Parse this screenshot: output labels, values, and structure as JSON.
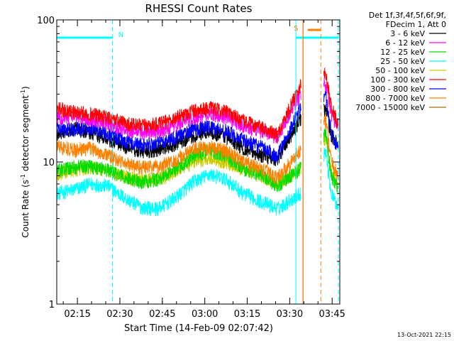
{
  "chart_data": {
    "type": "line",
    "title": "RHESSI Count Rates",
    "xlabel": "Start Time (14-Feb-09 02:07:42)",
    "ylabel": "Count Rate (s⁻¹ detector segment⁻¹)",
    "ylabel_main": "Count Rate (s",
    "ylabel_sup1": "-1",
    "ylabel_mid": " detector segment",
    "ylabel_sup2": "-1",
    "ylabel_end": ")",
    "y_scale": "log",
    "ylim": [
      1,
      100
    ],
    "xlim_minutes": [
      0,
      100
    ],
    "x_ticks": [
      {
        "label": "02:15",
        "min": 7.3
      },
      {
        "label": "02:30",
        "min": 22.3
      },
      {
        "label": "02:45",
        "min": 37.3
      },
      {
        "label": "03:00",
        "min": 52.3
      },
      {
        "label": "03:15",
        "min": 67.3
      },
      {
        "label": "03:30",
        "min": 82.3
      },
      {
        "label": "03:45",
        "min": 97.3
      }
    ],
    "y_ticks": [
      {
        "label": "1",
        "value": 1
      },
      {
        "label": "10",
        "value": 10
      },
      {
        "label": "100",
        "value": 100
      }
    ],
    "legend_header": [
      "Det 1f,3f,4f,5f,6f,9f,",
      "FDecim 1, Att 0"
    ],
    "legend_position": "top-right-outside",
    "series": [
      {
        "name": "3 - 6 keV",
        "color": "#000000",
        "values": [
          15.5,
          17.2,
          16.0,
          14.5,
          12.8,
          11.8,
          12.2,
          13.5,
          15.2,
          16.5,
          15.0,
          12.5,
          11.2,
          10.5,
          20.0,
          24.0,
          15.5,
          13.0
        ]
      },
      {
        "name": "6 - 12 keV",
        "color": "#ff00ff",
        "values": [
          20.5,
          21.2,
          20.0,
          18.8,
          17.0,
          16.2,
          16.5,
          18.2,
          20.5,
          22.0,
          20.8,
          18.0,
          16.5,
          15.0,
          30.0,
          36.0,
          22.0,
          17.0
        ]
      },
      {
        "name": "12 - 25 keV",
        "color": "#00dd00",
        "values": [
          8.7,
          9.2,
          9.4,
          8.8,
          7.8,
          7.3,
          7.6,
          9.0,
          11.0,
          12.2,
          11.0,
          9.0,
          8.2,
          6.8,
          9.0,
          16.0,
          8.0,
          6.5
        ]
      },
      {
        "name": "25 - 50 keV",
        "color": "#00ffff",
        "values": [
          6.0,
          6.4,
          7.0,
          6.8,
          5.6,
          4.8,
          4.7,
          5.6,
          7.2,
          8.2,
          7.5,
          6.0,
          5.3,
          4.7,
          6.0,
          12.0,
          6.0,
          4.8
        ]
      },
      {
        "name": "50 - 100 keV",
        "color": "#cccc00",
        "values": [
          8.3,
          8.8,
          9.3,
          8.8,
          7.9,
          7.4,
          7.6,
          8.6,
          10.0,
          10.8,
          10.0,
          8.8,
          8.0,
          7.0,
          9.0,
          15.0,
          8.5,
          7.0
        ]
      },
      {
        "name": "100 - 300 keV",
        "color": "#ff0000",
        "values": [
          24.0,
          22.5,
          21.8,
          20.5,
          18.8,
          18.0,
          18.5,
          20.5,
          23.0,
          24.0,
          22.5,
          19.5,
          17.5,
          15.5,
          35.0,
          42.0,
          25.0,
          18.0
        ]
      },
      {
        "name": "300 - 800 keV",
        "color": "#0000ff",
        "values": [
          17.0,
          17.0,
          17.5,
          15.8,
          14.0,
          13.2,
          13.6,
          15.0,
          17.0,
          17.8,
          16.5,
          14.2,
          12.8,
          11.0,
          24.0,
          30.0,
          16.0,
          12.0
        ]
      },
      {
        "name": "800 - 7000 keV",
        "color": "#ff8000",
        "values": [
          13.0,
          12.2,
          12.5,
          11.2,
          9.8,
          9.2,
          9.3,
          10.3,
          12.2,
          12.8,
          12.0,
          10.0,
          9.0,
          7.8,
          12.0,
          20.0,
          10.0,
          8.0
        ]
      },
      {
        "name": "7000 - 15000 keV",
        "color": "#a07000",
        "values": []
      }
    ],
    "series_x_minutes": [
      0,
      6,
      12,
      18,
      24,
      30,
      36,
      42,
      48,
      54,
      60,
      66,
      72,
      78,
      86,
      95,
      97,
      99.5
    ],
    "annotations": {
      "night_label": "N",
      "saa_label": "S",
      "night_bar": {
        "from_min": 0,
        "to_min": 19.7,
        "value": 75
      },
      "saa_bar": {
        "from_min": 84.5,
        "to_min": 99.5,
        "value": 75
      },
      "night_dash_min": 19.7,
      "day_start_min": 84.5,
      "saa_dash_min": 99.5,
      "s_marker_min": 87.0,
      "s_dash_min": 93.3,
      "s_bar": {
        "from_min": 88.7,
        "to_min": 93.3,
        "value": 85
      }
    },
    "colors": {
      "night": "#00ffff",
      "saa": "#ff8000",
      "s_marker_line": "#e07000"
    }
  },
  "footer": {
    "date": "13-Oct-2021 22:15"
  }
}
